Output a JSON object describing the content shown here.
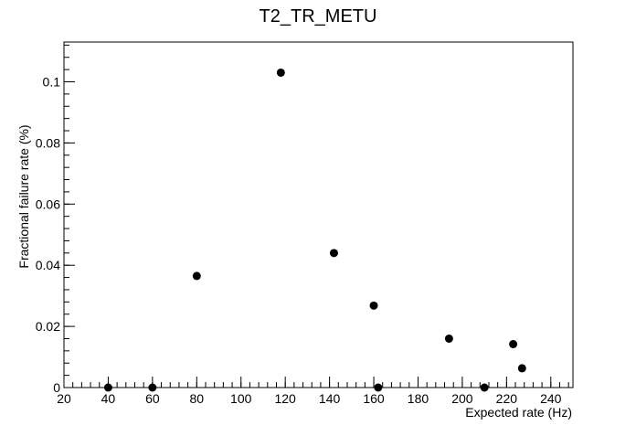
{
  "chart_data": {
    "type": "scatter",
    "title": "T2_TR_METU",
    "xlabel": "Expected rate (Hz)",
    "ylabel": "Fractional failure rate (%)",
    "xlim": [
      20,
      250
    ],
    "ylim": [
      0,
      0.113
    ],
    "xticks": [
      20,
      40,
      60,
      80,
      100,
      120,
      140,
      160,
      180,
      200,
      220,
      240
    ],
    "yticks": [
      0,
      0.02,
      0.04,
      0.06,
      0.08,
      0.1
    ],
    "xtick_labels": [
      "20",
      "40",
      "60",
      "80",
      "100",
      "120",
      "140",
      "160",
      "180",
      "200",
      "220",
      "240"
    ],
    "ytick_labels": [
      "0",
      "0.02",
      "0.04",
      "0.06",
      "0.08",
      "0.1"
    ],
    "grid": false,
    "legend": "none",
    "marker_color": "#000000",
    "series": [
      {
        "points": [
          {
            "x": 40,
            "y": 0
          },
          {
            "x": 60,
            "y": 0
          },
          {
            "x": 80,
            "y": 0.0365
          },
          {
            "x": 118,
            "y": 0.103
          },
          {
            "x": 142,
            "y": 0.044
          },
          {
            "x": 160,
            "y": 0.0268
          },
          {
            "x": 162,
            "y": 0
          },
          {
            "x": 194,
            "y": 0.016
          },
          {
            "x": 210,
            "y": 0
          },
          {
            "x": 223,
            "y": 0.0142
          },
          {
            "x": 227,
            "y": 0.0063
          }
        ]
      }
    ]
  }
}
